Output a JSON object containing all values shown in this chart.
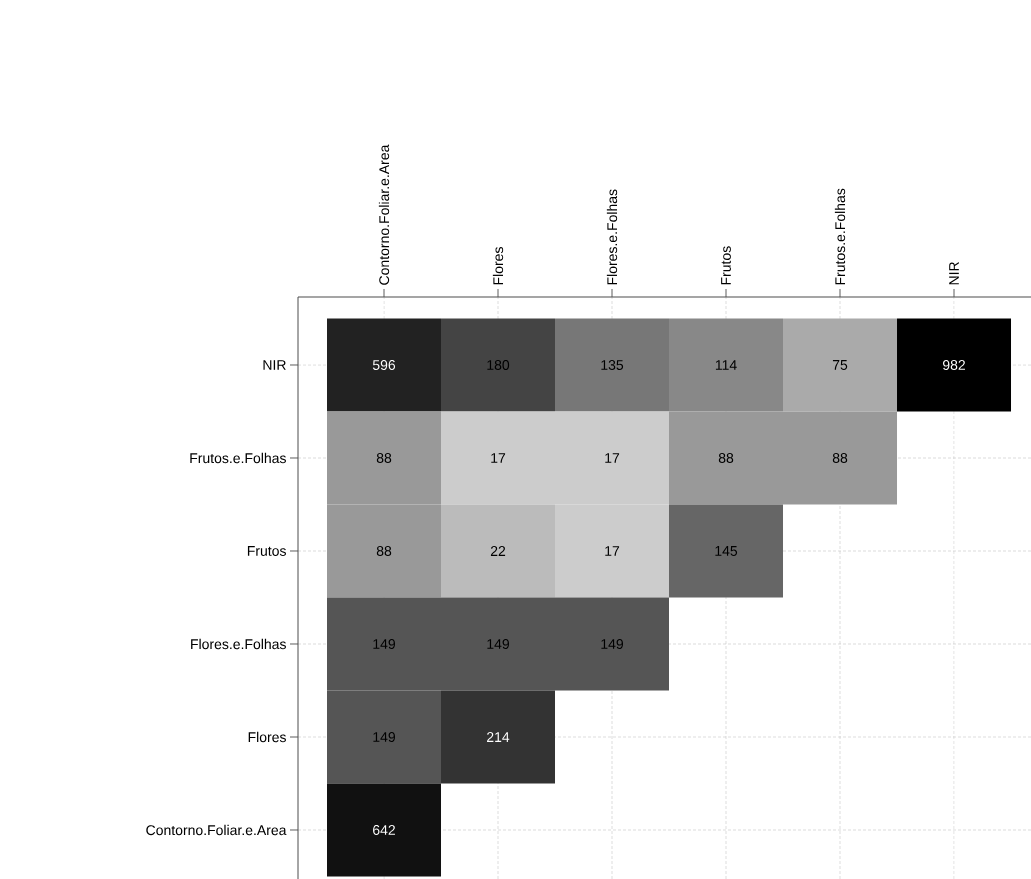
{
  "chart_data": {
    "type": "heatmap",
    "categories": [
      "Contorno.Foliar.e.Area",
      "Flores",
      "Flores.e.Folhas",
      "Frutos",
      "Frutos.e.Folhas",
      "NIR"
    ],
    "y_categories": [
      "NIR",
      "Frutos.e.Folhas",
      "Frutos",
      "Flores.e.Folhas",
      "Flores",
      "Contorno.Foliar.e.Area"
    ],
    "cells": [
      [
        596,
        180,
        135,
        114,
        75,
        982
      ],
      [
        88,
        17,
        17,
        88,
        88,
        null
      ],
      [
        88,
        22,
        17,
        145,
        null,
        null
      ],
      [
        149,
        149,
        149,
        null,
        null,
        null
      ],
      [
        149,
        214,
        null,
        null,
        null,
        null
      ],
      [
        642,
        null,
        null,
        null,
        null,
        null
      ]
    ],
    "data_labels": true,
    "grid": true
  }
}
